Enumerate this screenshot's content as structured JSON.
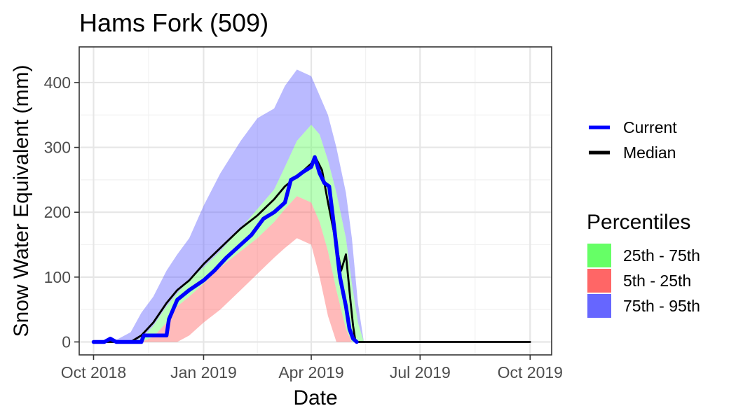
{
  "chart_data": {
    "type": "area",
    "title": "Hams Fork (509)",
    "xlabel": "Date",
    "ylabel": "Snow Water Equivalent (mm)",
    "x_ticks": [
      "Oct 2018",
      "Jan 2019",
      "Apr 2019",
      "Jul 2019",
      "Oct 2019"
    ],
    "x_tick_dates": [
      "2018-10-01",
      "2019-01-01",
      "2019-04-01",
      "2019-07-01",
      "2019-10-01"
    ],
    "xlim": [
      "2018-09-19",
      "2019-10-19"
    ],
    "y_ticks": [
      0,
      100,
      200,
      300,
      400
    ],
    "ylim": [
      -20,
      455
    ],
    "grid": true,
    "legend_placement": "right",
    "colors": {
      "current": "#0000ff",
      "median": "#000000",
      "p25_75": "#66ff66",
      "p5_25": "#ff6666",
      "p75_95": "#6666ff"
    },
    "legend": {
      "lines": [
        {
          "label": "Current",
          "color": "#0000ff"
        },
        {
          "label": "Median",
          "color": "#000000"
        }
      ],
      "percentiles_title": "Percentiles",
      "fills": [
        {
          "label": "25th - 75th",
          "color": "#66ff66"
        },
        {
          "label": "5th - 25th",
          "color": "#ff6666"
        },
        {
          "label": "75th - 95th",
          "color": "#6666ff"
        }
      ]
    },
    "percentile_bands": {
      "dates": [
        "2018-10-01",
        "2018-10-15",
        "2018-10-22",
        "2018-11-01",
        "2018-11-10",
        "2018-11-20",
        "2018-12-01",
        "2018-12-10",
        "2018-12-20",
        "2019-01-01",
        "2019-01-15",
        "2019-02-01",
        "2019-02-15",
        "2019-03-01",
        "2019-03-10",
        "2019-03-20",
        "2019-04-01",
        "2019-04-08",
        "2019-04-15",
        "2019-04-22",
        "2019-04-30",
        "2019-05-05",
        "2019-05-10",
        "2019-05-15",
        "2019-05-20",
        "2019-05-25",
        "2019-06-01"
      ],
      "p5": [
        0,
        0,
        0,
        0,
        0,
        0,
        0,
        0,
        10,
        30,
        50,
        80,
        105,
        130,
        145,
        160,
        150,
        100,
        40,
        0,
        0,
        0,
        0,
        0,
        0,
        0,
        0
      ],
      "p25": [
        0,
        0,
        0,
        0,
        0,
        8,
        30,
        55,
        70,
        90,
        115,
        140,
        160,
        185,
        205,
        225,
        215,
        185,
        140,
        80,
        20,
        0,
        0,
        0,
        0,
        0,
        0
      ],
      "p75": [
        0,
        0,
        0,
        0,
        5,
        25,
        55,
        75,
        95,
        115,
        140,
        175,
        205,
        235,
        270,
        310,
        335,
        320,
        280,
        230,
        160,
        90,
        30,
        0,
        0,
        0,
        0
      ],
      "p95": [
        0,
        0,
        5,
        15,
        45,
        70,
        110,
        135,
        160,
        210,
        260,
        310,
        345,
        360,
        395,
        420,
        410,
        380,
        350,
        300,
        230,
        160,
        60,
        0,
        0,
        0,
        0
      ]
    },
    "series": [
      {
        "name": "Median",
        "dates": [
          "2018-10-01",
          "2018-11-01",
          "2018-11-10",
          "2018-11-20",
          "2018-12-01",
          "2018-12-10",
          "2018-12-20",
          "2019-01-01",
          "2019-01-15",
          "2019-02-01",
          "2019-02-15",
          "2019-03-01",
          "2019-03-10",
          "2019-03-20",
          "2019-04-01",
          "2019-04-05",
          "2019-04-10",
          "2019-04-15",
          "2019-04-22",
          "2019-04-26",
          "2019-04-30",
          "2019-05-04",
          "2019-05-06",
          "2019-05-08",
          "2019-05-12",
          "2019-05-20",
          "2019-06-01",
          "2019-07-01",
          "2019-08-01",
          "2019-09-01",
          "2019-10-01"
        ],
        "values": [
          0,
          0,
          10,
          30,
          60,
          80,
          95,
          120,
          145,
          175,
          195,
          220,
          240,
          255,
          275,
          283,
          265,
          215,
          150,
          110,
          135,
          60,
          25,
          0,
          0,
          0,
          0,
          0,
          0,
          0,
          0
        ]
      },
      {
        "name": "Current",
        "dates": [
          "2018-10-01",
          "2018-10-10",
          "2018-10-15",
          "2018-10-20",
          "2018-11-10",
          "2018-11-12",
          "2018-12-01",
          "2018-12-03",
          "2018-12-10",
          "2018-12-20",
          "2019-01-01",
          "2019-01-10",
          "2019-01-20",
          "2019-02-01",
          "2019-02-10",
          "2019-02-20",
          "2019-03-01",
          "2019-03-10",
          "2019-03-15",
          "2019-03-20",
          "2019-03-25",
          "2019-04-01",
          "2019-04-04",
          "2019-04-08",
          "2019-04-12",
          "2019-04-16",
          "2019-04-20",
          "2019-04-25",
          "2019-04-30",
          "2019-05-03",
          "2019-05-06",
          "2019-05-09"
        ],
        "values": [
          0,
          0,
          5,
          0,
          0,
          10,
          10,
          35,
          65,
          80,
          95,
          110,
          130,
          150,
          165,
          190,
          200,
          215,
          250,
          255,
          262,
          270,
          285,
          260,
          245,
          240,
          180,
          100,
          55,
          20,
          5,
          0
        ]
      }
    ]
  }
}
